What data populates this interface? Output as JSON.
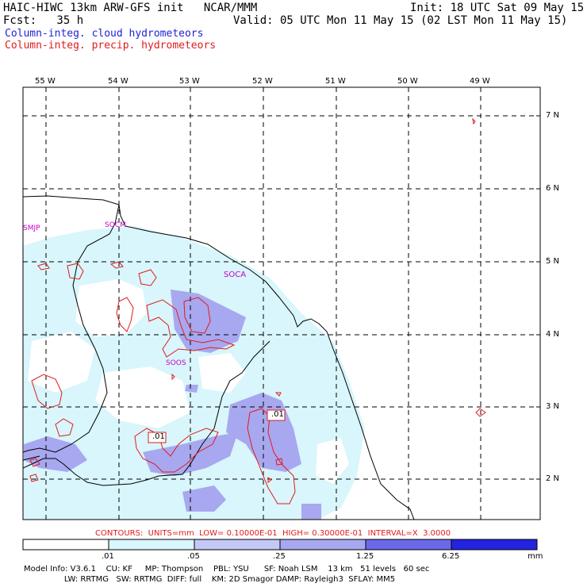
{
  "header": {
    "model_line": "HAIC-HIWC 13km ARW-GFS init   NCAR/MMM",
    "init_line": "Init: 18 UTC Sat 09 May 15",
    "fcst_line": "Fcst:   35 h",
    "valid_line": "Valid: 05 UTC Mon 11 May 15 (02 LST Mon 11 May 15)",
    "field1": "Column-integ. cloud hydrometeors",
    "field2": "Column-integ. precip. hydrometeors"
  },
  "map": {
    "lon_labels": [
      "55 W",
      "54 W",
      "53 W",
      "52 W",
      "51 W",
      "50 W",
      "49 W"
    ],
    "lat_labels": [
      "7 N",
      "6 N",
      "5 N",
      "4 N",
      "3 N",
      "2 N"
    ],
    "stations": [
      "SMJP",
      "SOCM",
      "SOCA",
      "SOOS"
    ],
    "contour_labels": [
      ".01",
      ".01"
    ],
    "colors": {
      "shade_light": "#d8f6fb",
      "shade_mid": "#a8a8f0",
      "precip_contour": "#e21b1b",
      "coastline": "#000000",
      "station": "#c800c8"
    }
  },
  "contour_note": "CONTOURS:  UNITS=mm  LOW= 0.10000E-01  HIGH= 0.30000E-01  INTERVAL=X  3.0000",
  "colorbar": {
    "ticks": [
      ".01",
      ".05",
      ".25",
      "1.25",
      "6.25"
    ],
    "units": "mm",
    "colors": [
      "#ffffff",
      "#d8f6fb",
      "#c4c8f6",
      "#a8a8f0",
      "#6a6ae8",
      "#2323e0"
    ]
  },
  "footer": {
    "line1": "Model Info: V3.6.1    CU: KF     MP: Thompson    PBL: YSU      SF: Noah LSM    13 km   51 levels   60 sec",
    "line2": "                LW: RRTMG   SW: RRTMG  DIFF: full    KM: 2D Smagor DAMP: Rayleigh3  SFLAY: MM5"
  }
}
